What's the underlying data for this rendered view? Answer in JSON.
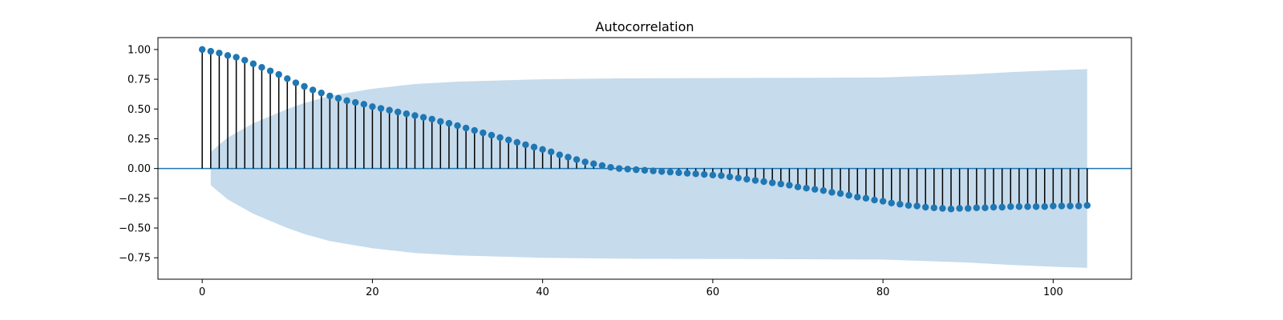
{
  "chart_data": {
    "type": "stem",
    "title": "Autocorrelation",
    "xlabel": "",
    "ylabel": "",
    "xlim": [
      -5.2,
      109.2
    ],
    "ylim": [
      -0.93,
      1.1
    ],
    "xticks": [
      0,
      20,
      40,
      60,
      80,
      100
    ],
    "xtick_labels": [
      "0",
      "20",
      "40",
      "60",
      "80",
      "100"
    ],
    "yticks": [
      -0.75,
      -0.5,
      -0.25,
      0.0,
      0.25,
      0.5,
      0.75,
      1.0
    ],
    "ytick_labels": [
      "−0.75",
      "−0.50",
      "−0.25",
      "0.00",
      "0.25",
      "0.50",
      "0.75",
      "1.00"
    ],
    "grid": false,
    "lags": [
      0,
      1,
      2,
      3,
      4,
      5,
      6,
      7,
      8,
      9,
      10,
      11,
      12,
      13,
      14,
      15,
      16,
      17,
      18,
      19,
      20,
      21,
      22,
      23,
      24,
      25,
      26,
      27,
      28,
      29,
      30,
      31,
      32,
      33,
      34,
      35,
      36,
      37,
      38,
      39,
      40,
      41,
      42,
      43,
      44,
      45,
      46,
      47,
      48,
      49,
      50,
      51,
      52,
      53,
      54,
      55,
      56,
      57,
      58,
      59,
      60,
      61,
      62,
      63,
      64,
      65,
      66,
      67,
      68,
      69,
      70,
      71,
      72,
      73,
      74,
      75,
      76,
      77,
      78,
      79,
      80,
      81,
      82,
      83,
      84,
      85,
      86,
      87,
      88,
      89,
      90,
      91,
      92,
      93,
      94,
      95,
      96,
      97,
      98,
      99,
      100,
      101,
      102,
      103,
      104
    ],
    "acf": [
      1.0,
      0.985,
      0.97,
      0.95,
      0.935,
      0.91,
      0.88,
      0.85,
      0.82,
      0.79,
      0.755,
      0.72,
      0.69,
      0.66,
      0.635,
      0.61,
      0.59,
      0.57,
      0.555,
      0.54,
      0.52,
      0.505,
      0.49,
      0.475,
      0.46,
      0.445,
      0.43,
      0.415,
      0.395,
      0.38,
      0.36,
      0.34,
      0.32,
      0.3,
      0.28,
      0.26,
      0.24,
      0.22,
      0.2,
      0.18,
      0.16,
      0.14,
      0.115,
      0.095,
      0.075,
      0.055,
      0.04,
      0.025,
      0.01,
      0.0,
      -0.005,
      -0.01,
      -0.015,
      -0.02,
      -0.025,
      -0.03,
      -0.035,
      -0.04,
      -0.045,
      -0.05,
      -0.055,
      -0.06,
      -0.07,
      -0.08,
      -0.09,
      -0.1,
      -0.11,
      -0.12,
      -0.13,
      -0.14,
      -0.155,
      -0.165,
      -0.175,
      -0.185,
      -0.2,
      -0.21,
      -0.225,
      -0.24,
      -0.25,
      -0.265,
      -0.275,
      -0.29,
      -0.3,
      -0.31,
      -0.315,
      -0.325,
      -0.33,
      -0.335,
      -0.34,
      -0.335,
      -0.335,
      -0.33,
      -0.33,
      -0.325,
      -0.325,
      -0.32,
      -0.32,
      -0.32,
      -0.32,
      -0.32,
      -0.315,
      -0.315,
      -0.315,
      -0.315,
      -0.31
    ],
    "confidence_band": {
      "lags": [
        1,
        2,
        3,
        4,
        5,
        6,
        8,
        10,
        12,
        15,
        20,
        25,
        30,
        40,
        50,
        60,
        70,
        80,
        90,
        95,
        100,
        104
      ],
      "half_width": [
        0.14,
        0.2,
        0.26,
        0.3,
        0.34,
        0.38,
        0.44,
        0.5,
        0.55,
        0.61,
        0.67,
        0.71,
        0.73,
        0.75,
        0.758,
        0.76,
        0.762,
        0.765,
        0.79,
        0.81,
        0.825,
        0.835
      ]
    },
    "colors": {
      "marker": "#1f77b4",
      "stem": "#000000",
      "baseline": "#1f77b4",
      "band": "#c6dbec"
    }
  }
}
